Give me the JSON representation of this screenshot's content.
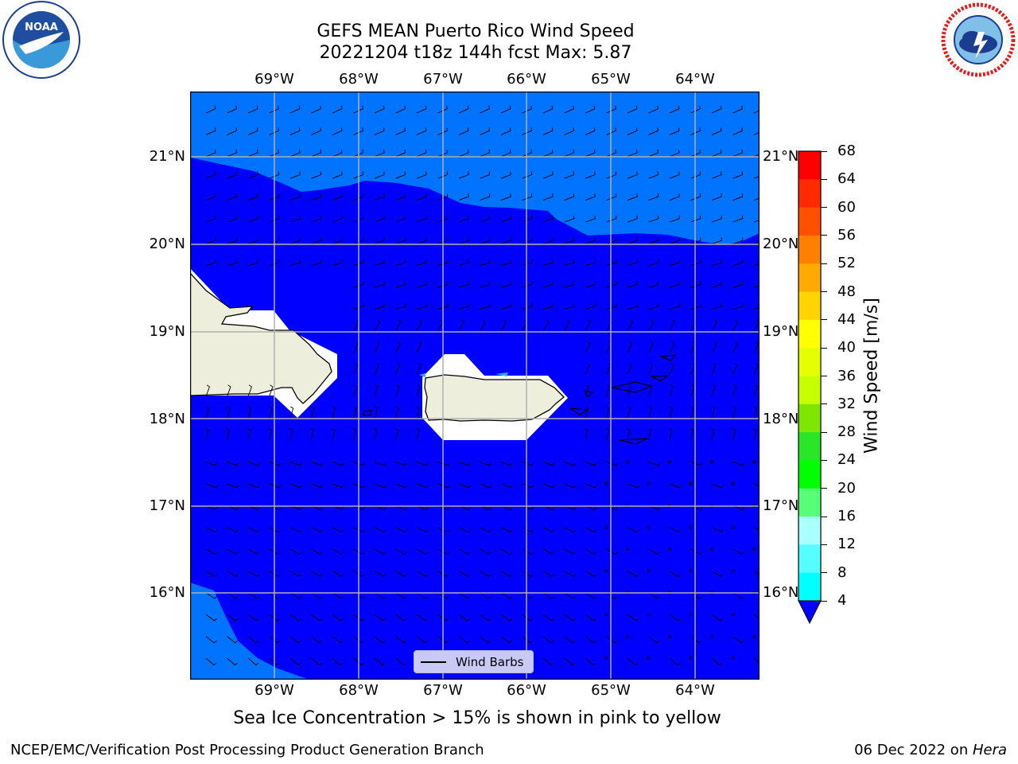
{
  "title_line1": "GEFS MEAN Puerto Rico Wind Speed",
  "title_line2": "20221204 t18z 144h fcst   Max: 5.87",
  "lon_ticks": [
    "69°W",
    "68°W",
    "67°W",
    "66°W",
    "65°W",
    "64°W"
  ],
  "lat_ticks": [
    "21°N",
    "20°N",
    "19°N",
    "18°N",
    "17°N",
    "16°N"
  ],
  "colorbar": {
    "label": "Wind Speed [m/s]",
    "ticks": [
      "68",
      "64",
      "60",
      "56",
      "52",
      "48",
      "44",
      "40",
      "36",
      "32",
      "28",
      "24",
      "20",
      "16",
      "12",
      "8",
      "4"
    ],
    "colors": [
      "#ff0000",
      "#ff2a00",
      "#ff5000",
      "#ff7f00",
      "#ffaa00",
      "#ffd400",
      "#ffff00",
      "#e6ff00",
      "#c8ff00",
      "#7fe600",
      "#29e629",
      "#00ff00",
      "#55ff77",
      "#aaffff",
      "#55ffff",
      "#00ffff",
      "#0077ff"
    ],
    "under_color": "#0000ff"
  },
  "legend_label": "Wind Barbs",
  "subtitle": "Sea Ice Concentration > 15% is shown in pink to yellow",
  "credit_left": "NCEP/EMC/Verification Post Processing Product Generation Branch",
  "credit_date": "06 Dec 2022 on ",
  "credit_host": "Hera",
  "logos": {
    "left_seal": "NOAA",
    "right_seal": "NATIONAL WEATHER SERVICE"
  },
  "map_colors": {
    "light_band": "#0073ff",
    "main_band": "#0000ff",
    "land": "#eeeedc",
    "masked": "#ffffff",
    "grid": "#b0b0b0"
  }
}
